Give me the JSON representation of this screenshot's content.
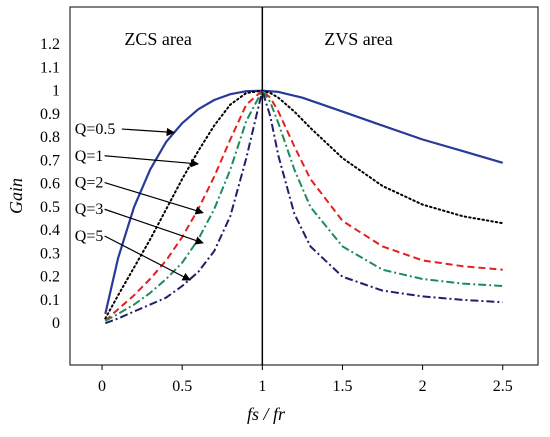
{
  "chart_data": {
    "type": "line",
    "title": "",
    "xlabel": "fs / fr",
    "ylabel": "Gain",
    "xlim": [
      -0.2,
      2.72
    ],
    "ylim": [
      -0.18,
      1.36
    ],
    "x_ticks": [
      "0",
      "0.5",
      "1",
      "1.5",
      "2",
      "2.5"
    ],
    "y_ticks": [
      "0",
      "0.1",
      "0.2",
      "0.3",
      "0.4",
      "0.5",
      "0.6",
      "0.7",
      "0.8",
      "0.9",
      "1",
      "1.1",
      "1.2"
    ],
    "grid": false,
    "legend": "none",
    "regions": [
      {
        "label": "ZCS area",
        "x": 0.35
      },
      {
        "label": "ZVS area",
        "x": 1.6
      }
    ],
    "divider_x": 1,
    "series": [
      {
        "name": "Q=0.5",
        "color": "#2a3a9a",
        "dash": "solid",
        "x": [
          0.02,
          0.1,
          0.2,
          0.3,
          0.4,
          0.5,
          0.6,
          0.7,
          0.8,
          0.9,
          1.0,
          1.1,
          1.25,
          1.5,
          1.75,
          2.0,
          2.25,
          2.5
        ],
        "y": [
          0.04,
          0.28,
          0.5,
          0.66,
          0.78,
          0.86,
          0.92,
          0.96,
          0.985,
          0.998,
          1.0,
          0.995,
          0.97,
          0.91,
          0.85,
          0.79,
          0.74,
          0.69
        ]
      },
      {
        "name": "Q=1",
        "color": "#000000",
        "dash": "dotted",
        "x": [
          0.02,
          0.1,
          0.2,
          0.3,
          0.4,
          0.5,
          0.6,
          0.7,
          0.8,
          0.9,
          1.0,
          1.05,
          1.1,
          1.2,
          1.3,
          1.5,
          1.75,
          2.0,
          2.25,
          2.5
        ],
        "y": [
          0.02,
          0.12,
          0.24,
          0.36,
          0.49,
          0.62,
          0.74,
          0.85,
          0.94,
          0.99,
          1.0,
          0.99,
          0.97,
          0.91,
          0.84,
          0.71,
          0.59,
          0.51,
          0.46,
          0.43
        ]
      },
      {
        "name": "Q=2",
        "color": "#e0231c",
        "dash": "dashed",
        "x": [
          0.02,
          0.1,
          0.2,
          0.3,
          0.4,
          0.5,
          0.6,
          0.7,
          0.8,
          0.9,
          1.0,
          1.05,
          1.1,
          1.2,
          1.3,
          1.5,
          1.75,
          2.0,
          2.25,
          2.5
        ],
        "y": [
          0.01,
          0.06,
          0.12,
          0.19,
          0.27,
          0.37,
          0.49,
          0.63,
          0.79,
          0.94,
          1.0,
          0.97,
          0.91,
          0.76,
          0.62,
          0.44,
          0.33,
          0.27,
          0.245,
          0.23
        ]
      },
      {
        "name": "Q=3",
        "color": "#1f8a5a",
        "dash": "dashdot",
        "x": [
          0.02,
          0.1,
          0.2,
          0.3,
          0.4,
          0.5,
          0.6,
          0.7,
          0.8,
          0.9,
          1.0,
          1.05,
          1.1,
          1.2,
          1.3,
          1.5,
          1.75,
          2.0,
          2.25,
          2.5
        ],
        "y": [
          0.01,
          0.04,
          0.08,
          0.13,
          0.19,
          0.26,
          0.36,
          0.49,
          0.66,
          0.87,
          1.0,
          0.95,
          0.86,
          0.66,
          0.5,
          0.33,
          0.23,
          0.19,
          0.17,
          0.16
        ]
      },
      {
        "name": "Q=5",
        "color": "#20206a",
        "dash": "dashdot",
        "x": [
          0.02,
          0.1,
          0.2,
          0.3,
          0.4,
          0.5,
          0.6,
          0.7,
          0.8,
          0.9,
          1.0,
          1.05,
          1.1,
          1.2,
          1.3,
          1.5,
          1.75,
          2.0,
          2.25,
          2.5
        ],
        "y": [
          0.0,
          0.02,
          0.05,
          0.08,
          0.11,
          0.16,
          0.22,
          0.31,
          0.46,
          0.71,
          1.0,
          0.89,
          0.72,
          0.47,
          0.33,
          0.2,
          0.14,
          0.115,
          0.1,
          0.09
        ]
      }
    ],
    "annotations": [
      {
        "text": "Q=0.5",
        "label_x": -0.17,
        "label_y": 0.835,
        "arrow_to": [
          0.45,
          0.82
        ]
      },
      {
        "text": "Q=1",
        "label_x": -0.17,
        "label_y": 0.72,
        "arrow_to": [
          0.6,
          0.685
        ]
      },
      {
        "text": "Q=2",
        "label_x": -0.17,
        "label_y": 0.605,
        "arrow_to": [
          0.63,
          0.475
        ]
      },
      {
        "text": "Q=3",
        "label_x": -0.17,
        "label_y": 0.49,
        "arrow_to": [
          0.63,
          0.345
        ]
      },
      {
        "text": "Q=5",
        "label_x": -0.17,
        "label_y": 0.375,
        "arrow_to": [
          0.55,
          0.185
        ]
      }
    ]
  }
}
